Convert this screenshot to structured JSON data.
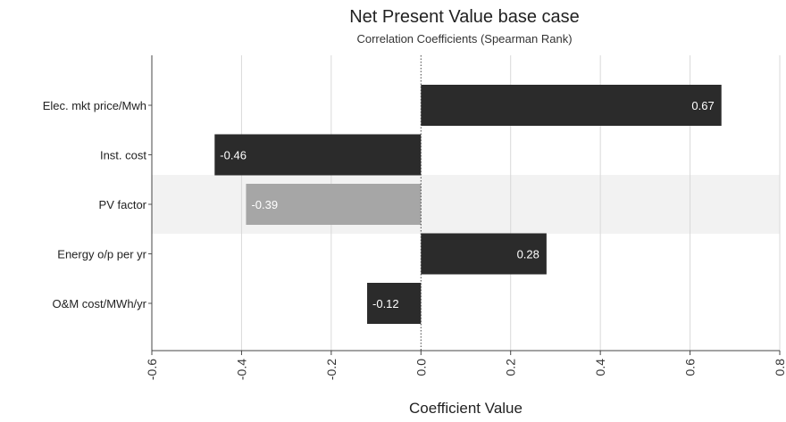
{
  "chart_data": {
    "type": "bar",
    "orientation": "horizontal",
    "title": "Net Present Value base case",
    "subtitle": "Correlation Coefficients (Spearman Rank)",
    "xlabel": "Coefficient Value",
    "xlim": [
      -0.6,
      0.8
    ],
    "xticks": [
      "-0.6",
      "-0.4",
      "-0.2",
      "0.0",
      "0.2",
      "0.4",
      "0.6",
      "0.8"
    ],
    "grid": true,
    "categories": [
      "Elec. mkt price/Mwh",
      "Inst. cost",
      "PV factor",
      "Energy o/p per yr",
      "O&M cost/MWh/yr"
    ],
    "values": [
      0.67,
      -0.46,
      -0.39,
      0.28,
      -0.12
    ],
    "labels": [
      "0.67",
      "-0.46",
      "-0.39",
      "0.28",
      "-0.12"
    ],
    "colors": [
      "#2b2b2b",
      "#2b2b2b",
      "#a6a6a6",
      "#2b2b2b",
      "#2b2b2b"
    ],
    "highlight_band_color": "#f2f2f2"
  }
}
